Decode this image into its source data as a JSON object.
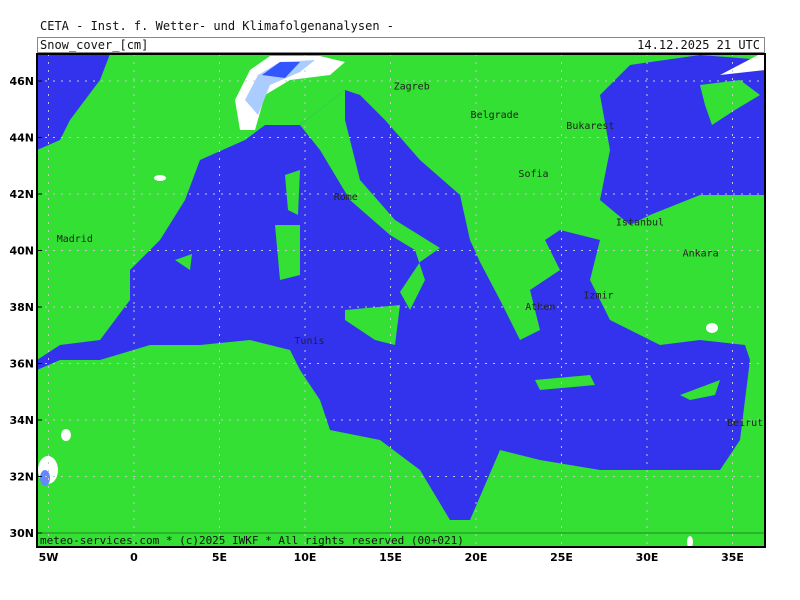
{
  "header": {
    "institute": "CETA - Inst. f. Wetter- und Klimafolgenanalysen -"
  },
  "map": {
    "parameter": "Snow_cover_[cm]",
    "valid_time": "14.12.2025 21 UTC",
    "footer": "meteo-services.com * (c)2025 IWKF * All rights reserved (00+021)",
    "lat_labels": [
      "46N",
      "44N",
      "42N",
      "40N",
      "38N",
      "36N",
      "34N",
      "32N",
      "30N"
    ],
    "lat_values": [
      46,
      44,
      42,
      40,
      38,
      36,
      34,
      32,
      30
    ],
    "lon_labels": [
      "5W",
      "0",
      "5E",
      "10E",
      "15E",
      "20E",
      "25E",
      "30E",
      "35E"
    ],
    "lon_values": [
      -5,
      0,
      5,
      10,
      15,
      20,
      25,
      30,
      35
    ],
    "cities": [
      {
        "name": "Zagreb",
        "lon": 16.0,
        "lat": 45.8
      },
      {
        "name": "Belgrade",
        "lon": 20.5,
        "lat": 44.8
      },
      {
        "name": "Bukarest",
        "lon": 26.1,
        "lat": 44.4
      },
      {
        "name": "Sofia",
        "lon": 23.3,
        "lat": 42.7
      },
      {
        "name": "Rome",
        "lon": 12.5,
        "lat": 41.9
      },
      {
        "name": "Istanbul",
        "lon": 29.0,
        "lat": 41.0
      },
      {
        "name": "Madrid",
        "lon": -3.7,
        "lat": 40.4
      },
      {
        "name": "Ankara",
        "lon": 32.9,
        "lat": 39.9
      },
      {
        "name": "Athen",
        "lon": 23.7,
        "lat": 38.0
      },
      {
        "name": "Izmir",
        "lon": 27.1,
        "lat": 38.4
      },
      {
        "name": "Tunis",
        "lon": 10.2,
        "lat": 36.8
      },
      {
        "name": "Beirut",
        "lon": 35.5,
        "lat": 33.9
      }
    ],
    "colors": {
      "land": "#33e033",
      "sea": "#3333ee",
      "snow_light": "#ffffff",
      "snow_mid": "#aaccff",
      "snow_deep": "#3355ff",
      "grid": "#c8c8c8"
    }
  }
}
